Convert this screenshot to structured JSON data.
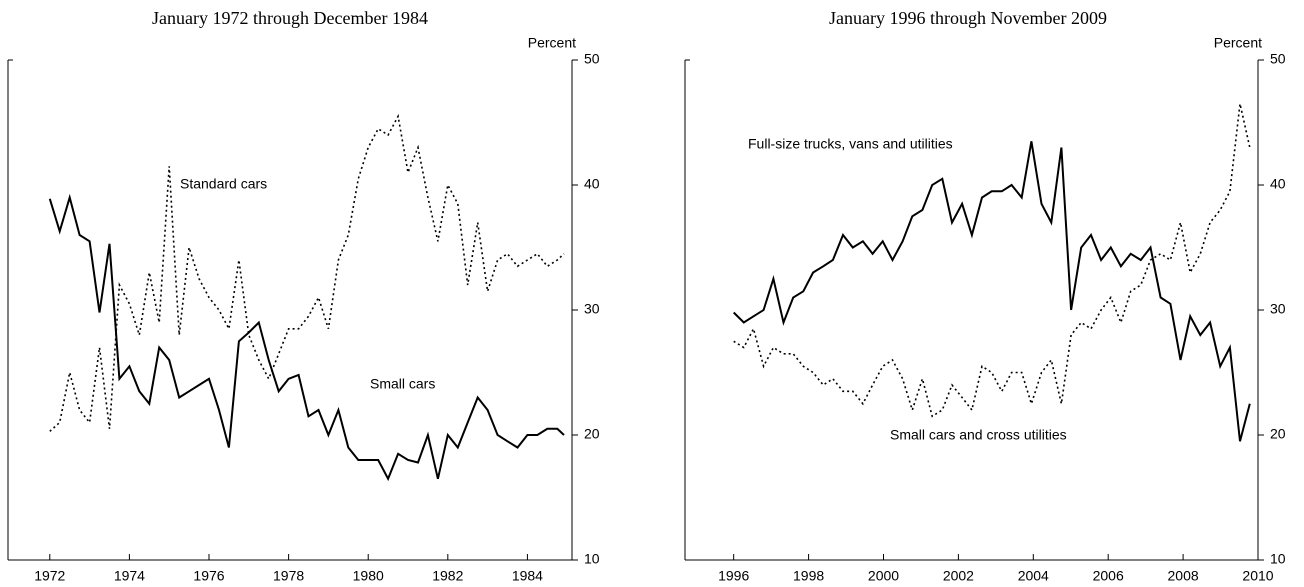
{
  "chart_data": [
    {
      "type": "line",
      "title": "January 1972 through December 1984",
      "y_label": "Percent",
      "x": [
        1972,
        1972.25,
        1972.5,
        1972.75,
        1973,
        1973.25,
        1973.5,
        1973.75,
        1974,
        1974.25,
        1974.5,
        1974.75,
        1975,
        1975.25,
        1975.5,
        1975.75,
        1976,
        1976.25,
        1976.5,
        1976.75,
        1977,
        1977.25,
        1977.5,
        1977.75,
        1978,
        1978.25,
        1978.5,
        1978.75,
        1979,
        1979.25,
        1979.5,
        1979.75,
        1980,
        1980.25,
        1980.5,
        1980.75,
        1981,
        1981.25,
        1981.5,
        1981.75,
        1982,
        1982.25,
        1982.5,
        1982.75,
        1983,
        1983.25,
        1983.5,
        1983.75,
        1984,
        1984.25,
        1984.5,
        1984.75,
        1984.92
      ],
      "series": [
        {
          "name": "Standard cars",
          "color": "#000000",
          "line_style": "solid",
          "values": [
            38.9,
            36.3,
            39,
            36,
            35.5,
            29.8,
            35.3,
            24.5,
            25.5,
            23.5,
            22.5,
            27,
            26,
            23,
            23.5,
            24,
            24.5,
            22,
            19,
            27.5,
            28.2,
            29,
            26,
            23.5,
            24.5,
            24.8,
            21.5,
            22,
            20,
            22,
            19,
            18,
            18,
            18,
            16.5,
            18.5,
            18,
            17.8,
            20,
            16.5,
            20,
            19,
            21,
            23,
            22,
            20,
            19.5,
            19,
            20,
            20,
            20.5,
            20.5,
            20
          ]
        },
        {
          "name": "Small cars",
          "color": "#000000",
          "line_style": "dotted",
          "values": [
            20.3,
            21,
            25,
            22,
            21,
            27,
            20.5,
            32,
            30.5,
            28,
            33,
            29,
            41.5,
            28,
            35,
            32.5,
            31,
            30,
            28.5,
            34,
            28,
            26,
            24.5,
            26.5,
            28.5,
            28.5,
            29.5,
            31,
            28.5,
            34,
            36,
            40.5,
            43,
            44.5,
            44,
            45.5,
            41,
            43,
            39,
            35.5,
            40,
            38.5,
            32,
            37,
            31.5,
            34,
            34.5,
            33.5,
            34,
            34.5,
            33.5,
            34,
            34.5
          ]
        }
      ],
      "xlim": [
        1970.95,
        1985.12
      ],
      "xticks": [
        1972,
        1974,
        1976,
        1978,
        1980,
        1982,
        1984
      ],
      "ylim": [
        10,
        50
      ],
      "yticks": [
        10,
        20,
        30,
        40,
        50
      ]
    },
    {
      "type": "line",
      "title": "January 1996 through November 2009",
      "y_label": "Percent",
      "x": [
        1996,
        1996.27,
        1996.53,
        1996.8,
        1997.06,
        1997.33,
        1997.59,
        1997.86,
        1998.12,
        1998.39,
        1998.65,
        1998.92,
        1999.18,
        1999.45,
        1999.71,
        1999.98,
        2000.24,
        2000.51,
        2000.77,
        2001.04,
        2001.3,
        2001.57,
        2001.83,
        2002.1,
        2002.36,
        2002.63,
        2002.89,
        2003.16,
        2003.42,
        2003.69,
        2003.95,
        2004.22,
        2004.48,
        2004.75,
        2005.01,
        2005.28,
        2005.54,
        2005.81,
        2006.07,
        2006.34,
        2006.6,
        2006.87,
        2007.13,
        2007.4,
        2007.66,
        2007.93,
        2008.19,
        2008.46,
        2008.72,
        2008.99,
        2009.25,
        2009.52,
        2009.78
      ],
      "series": [
        {
          "name": "Full-size trucks, vans and utilities",
          "color": "#000000",
          "line_style": "solid",
          "values": [
            29.8,
            29,
            29.5,
            30,
            32.5,
            29,
            31,
            31.5,
            33,
            33.5,
            34,
            36,
            35,
            35.5,
            34.5,
            35.5,
            34,
            35.5,
            37.5,
            38,
            40,
            40.5,
            37,
            38.5,
            36,
            39,
            39.5,
            39.5,
            40,
            39,
            43.5,
            38.5,
            37,
            43,
            30,
            35,
            36,
            34,
            35,
            33.5,
            34.5,
            34,
            35,
            31,
            30.5,
            26,
            29.5,
            28,
            29,
            25.5,
            27,
            19.5,
            22.5
          ]
        },
        {
          "name": "Small cars and cross utilities",
          "color": "#000000",
          "line_style": "dotted",
          "values": [
            27.5,
            27,
            28.5,
            25.5,
            27,
            26.5,
            26.5,
            25.5,
            25,
            24,
            24.5,
            23.5,
            23.5,
            22.5,
            24,
            25.5,
            26,
            24.5,
            22,
            24.5,
            21.5,
            22,
            24,
            23,
            22,
            25.5,
            25,
            23.5,
            25,
            25,
            22.5,
            25,
            26,
            22.5,
            28,
            29,
            28.5,
            30,
            31,
            29,
            31.5,
            32,
            34,
            34.5,
            34,
            37,
            33,
            34.5,
            37,
            38,
            39.5,
            46.5,
            43
          ]
        }
      ],
      "xlim": [
        1994.7,
        2010
      ],
      "xticks": [
        1996,
        1998,
        2000,
        2002,
        2004,
        2006,
        2008,
        2010
      ],
      "ylim": [
        10,
        50
      ],
      "yticks": [
        10,
        20,
        30,
        40,
        50
      ]
    }
  ]
}
